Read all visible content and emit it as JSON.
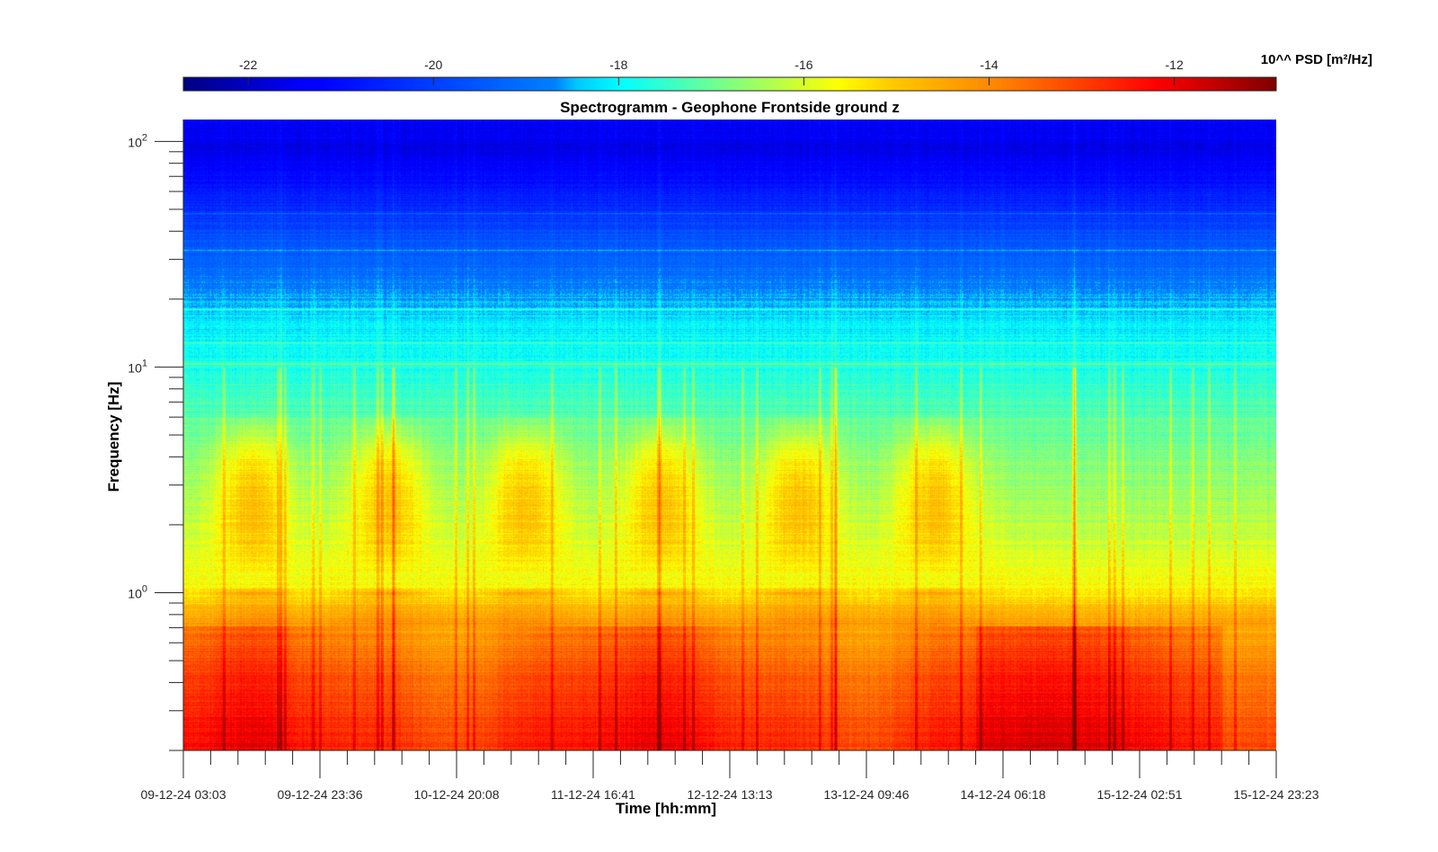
{
  "chart_data": {
    "type": "heatmap",
    "title": "Spectrogramm - Geophone Frontside ground z",
    "xlabel": "Time [hh:mm]",
    "ylabel": "Frequency [Hz]",
    "x_ticks": [
      "09-12-24 03:03",
      "09-12-24 23:36",
      "10-12-24 20:08",
      "11-12-24 16:41",
      "12-12-24 13:13",
      "13-12-24 09:46",
      "14-12-24 06:18",
      "15-12-24 02:51",
      "15-12-24 23:23"
    ],
    "y_scale": "log",
    "y_range_hz": [
      0.2,
      125
    ],
    "y_ticks": [
      {
        "base": "10",
        "exp": "0",
        "value": 1
      },
      {
        "base": "10",
        "exp": "1",
        "value": 10
      },
      {
        "base": "10",
        "exp": "2",
        "value": 100
      }
    ],
    "colorbar": {
      "label": "10^^ PSD [m²/Hz]",
      "location": "top",
      "colormap": "jet",
      "range": [
        -22.7,
        -10.9
      ],
      "ticks": [
        "-22",
        "-20",
        "-18",
        "-16",
        "-14",
        "-12"
      ],
      "tick_values": [
        -22,
        -20,
        -18,
        -16,
        -14,
        -12
      ]
    },
    "psd_profile_log10": [
      {
        "freq_hz": 125,
        "psd": -21.4
      },
      {
        "freq_hz": 90,
        "psd": -21.6
      },
      {
        "freq_hz": 60,
        "psd": -20.8
      },
      {
        "freq_hz": 40,
        "psd": -19.8
      },
      {
        "freq_hz": 25,
        "psd": -18.9
      },
      {
        "freq_hz": 15,
        "psd": -18.1
      },
      {
        "freq_hz": 10,
        "psd": -17.7
      },
      {
        "freq_hz": 6,
        "psd": -17.2
      },
      {
        "freq_hz": 4,
        "psd": -16.8
      },
      {
        "freq_hz": 2,
        "psd": -16.3
      },
      {
        "freq_hz": 1,
        "psd": -15.5
      },
      {
        "freq_hz": 0.7,
        "psd": -14.2
      },
      {
        "freq_hz": 0.4,
        "psd": -13.3
      },
      {
        "freq_hz": 0.2,
        "psd": -12.7
      }
    ],
    "spectral_lines_hz": [
      48,
      33,
      18,
      12.8,
      10.3
    ],
    "activity_bursts_day_index": [
      0.5,
      1.5,
      2.5,
      3.5,
      4.5,
      5.5
    ],
    "burst_band_hz": [
      1.5,
      5
    ]
  }
}
